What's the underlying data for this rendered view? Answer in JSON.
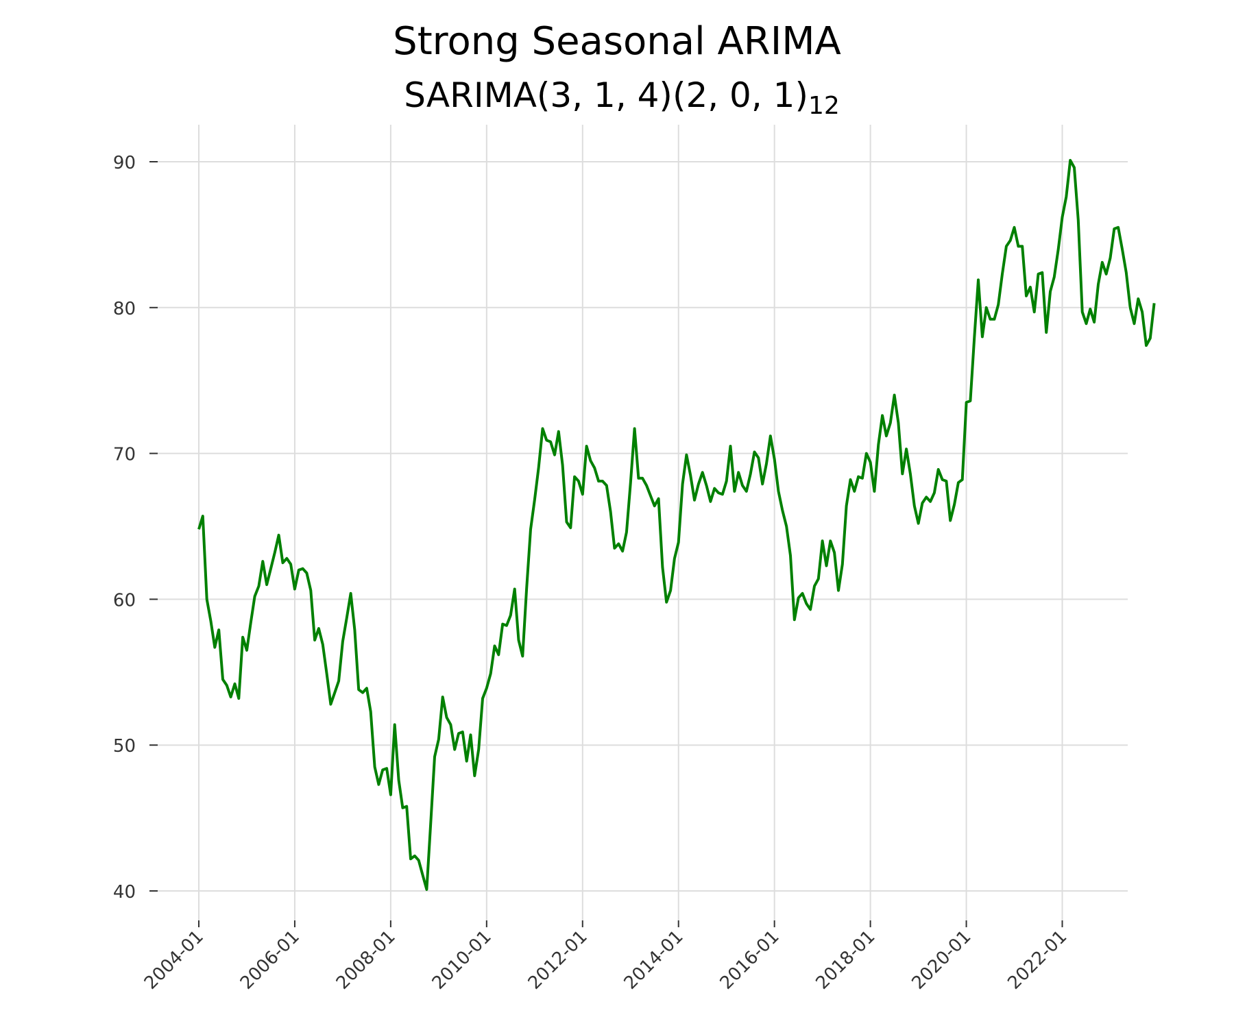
{
  "chart_data": {
    "type": "line",
    "title": "Strong Seasonal ARIMA",
    "subtitle": {
      "prefix": "SARIMA(3, 1, 4)(2, 0, 1)",
      "subscript": "12"
    },
    "xlabel": "",
    "ylabel": "",
    "x_range": [
      "2004-01",
      "2023-12"
    ],
    "ylim": [
      40,
      90
    ],
    "y_ticks": [
      40,
      50,
      60,
      70,
      80,
      90
    ],
    "x_ticks": [
      "2004-01",
      "2006-01",
      "2008-01",
      "2010-01",
      "2012-01",
      "2014-01",
      "2016-01",
      "2018-01",
      "2020-01",
      "2022-01"
    ],
    "grid": true,
    "legend": "none",
    "series": [
      {
        "color": "#008000",
        "x": [
          "2004-01",
          "2004-02",
          "2004-03",
          "2004-04",
          "2004-05",
          "2004-06",
          "2004-07",
          "2004-08",
          "2004-09",
          "2004-10",
          "2004-11",
          "2004-12",
          "2005-01",
          "2005-02",
          "2005-03",
          "2005-04",
          "2005-05",
          "2005-06",
          "2005-07",
          "2005-08",
          "2005-09",
          "2005-10",
          "2005-11",
          "2005-12",
          "2006-01",
          "2006-02",
          "2006-03",
          "2006-04",
          "2006-05",
          "2006-06",
          "2006-07",
          "2006-08",
          "2006-09",
          "2006-10",
          "2006-11",
          "2006-12",
          "2007-01",
          "2007-02",
          "2007-03",
          "2007-04",
          "2007-05",
          "2007-06",
          "2007-07",
          "2007-08",
          "2007-09",
          "2007-10",
          "2007-11",
          "2007-12",
          "2008-01",
          "2008-02",
          "2008-03",
          "2008-04",
          "2008-05",
          "2008-06",
          "2008-07",
          "2008-08",
          "2008-09",
          "2008-10",
          "2008-11",
          "2008-12",
          "2009-01",
          "2009-02",
          "2009-03",
          "2009-04",
          "2009-05",
          "2009-06",
          "2009-07",
          "2009-08",
          "2009-09",
          "2009-10",
          "2009-11",
          "2009-12",
          "2010-01",
          "2010-02",
          "2010-03",
          "2010-04",
          "2010-05",
          "2010-06",
          "2010-07",
          "2010-08",
          "2010-09",
          "2010-10",
          "2010-11",
          "2010-12",
          "2011-01",
          "2011-02",
          "2011-03",
          "2011-04",
          "2011-05",
          "2011-06",
          "2011-07",
          "2011-08",
          "2011-09",
          "2011-10",
          "2011-11",
          "2011-12",
          "2012-01",
          "2012-02",
          "2012-03",
          "2012-04",
          "2012-05",
          "2012-06",
          "2012-07",
          "2012-08",
          "2012-09",
          "2012-10",
          "2012-11",
          "2012-12",
          "2013-01",
          "2013-02",
          "2013-03",
          "2013-04",
          "2013-05",
          "2013-06",
          "2013-07",
          "2013-08",
          "2013-09",
          "2013-10",
          "2013-11",
          "2013-12",
          "2014-01",
          "2014-02",
          "2014-03",
          "2014-04",
          "2014-05",
          "2014-06",
          "2014-07",
          "2014-08",
          "2014-09",
          "2014-10",
          "2014-11",
          "2014-12",
          "2015-01",
          "2015-02",
          "2015-03",
          "2015-04",
          "2015-05",
          "2015-06",
          "2015-07",
          "2015-08",
          "2015-09",
          "2015-10",
          "2015-11",
          "2015-12",
          "2016-01",
          "2016-02",
          "2016-03",
          "2016-04",
          "2016-05",
          "2016-06",
          "2016-07",
          "2016-08",
          "2016-09",
          "2016-10",
          "2016-11",
          "2016-12",
          "2017-01",
          "2017-02",
          "2017-03",
          "2017-04",
          "2017-05",
          "2017-06",
          "2017-07",
          "2017-08",
          "2017-09",
          "2017-10",
          "2017-11",
          "2017-12",
          "2018-01",
          "2018-02",
          "2018-03",
          "2018-04",
          "2018-05",
          "2018-06",
          "2018-07",
          "2018-08",
          "2018-09",
          "2018-10",
          "2018-11",
          "2018-12",
          "2019-01",
          "2019-02",
          "2019-03",
          "2019-04",
          "2019-05",
          "2019-06",
          "2019-07",
          "2019-08",
          "2019-09",
          "2019-10",
          "2019-11",
          "2019-12",
          "2020-01",
          "2020-02",
          "2020-03",
          "2020-04",
          "2020-05",
          "2020-06",
          "2020-07",
          "2020-08",
          "2020-09",
          "2020-10",
          "2020-11",
          "2020-12",
          "2021-01",
          "2021-02",
          "2021-03",
          "2021-04",
          "2021-05",
          "2021-06",
          "2021-07",
          "2021-08",
          "2021-09",
          "2021-10",
          "2021-11",
          "2021-12",
          "2022-01",
          "2022-02",
          "2022-03",
          "2022-04",
          "2022-05",
          "2022-06",
          "2022-07",
          "2022-08",
          "2022-09",
          "2022-10",
          "2022-11",
          "2022-12",
          "2023-01",
          "2023-02",
          "2023-03",
          "2023-04",
          "2023-05",
          "2023-06",
          "2023-07",
          "2023-08",
          "2023-09",
          "2023-10",
          "2023-11",
          "2023-12"
        ],
        "values": [
          64.8,
          65.7,
          60.0,
          58.5,
          56.7,
          57.9,
          54.5,
          54.1,
          53.3,
          54.2,
          53.2,
          57.4,
          56.5,
          58.4,
          60.2,
          60.9,
          62.6,
          61.0,
          62.1,
          63.2,
          64.4,
          62.5,
          62.8,
          62.4,
          60.7,
          62.0,
          62.1,
          61.8,
          60.6,
          57.2,
          58.0,
          56.9,
          54.9,
          52.8,
          53.6,
          54.4,
          57.1,
          58.7,
          60.4,
          57.9,
          53.8,
          53.6,
          53.9,
          52.3,
          48.5,
          47.3,
          48.3,
          48.4,
          46.6,
          51.4,
          47.6,
          45.7,
          45.8,
          42.2,
          42.4,
          42.1,
          41.1,
          40.1,
          44.6,
          49.2,
          50.4,
          53.3,
          51.9,
          51.4,
          49.7,
          50.8,
          50.9,
          48.9,
          50.7,
          47.9,
          49.7,
          53.2,
          53.9,
          54.9,
          56.8,
          56.2,
          58.3,
          58.2,
          58.9,
          60.7,
          57.2,
          56.1,
          60.7,
          64.8,
          66.8,
          69.0,
          71.7,
          70.9,
          70.8,
          69.9,
          71.5,
          69.2,
          65.3,
          64.9,
          68.4,
          68.1,
          67.2,
          70.5,
          69.5,
          69.0,
          68.1,
          68.1,
          67.8,
          66.0,
          63.5,
          63.8,
          63.3,
          64.6,
          68.0,
          71.7,
          68.3,
          68.3,
          67.8,
          67.1,
          66.4,
          66.9,
          62.2,
          59.8,
          60.6,
          62.8,
          63.9,
          67.9,
          69.9,
          68.5,
          66.8,
          67.9,
          68.7,
          67.8,
          66.7,
          67.6,
          67.3,
          67.2,
          68.1,
          70.5,
          67.4,
          68.7,
          67.8,
          67.4,
          68.6,
          70.1,
          69.7,
          67.9,
          69.3,
          71.2,
          69.6,
          67.4,
          66.1,
          65.0,
          63.0,
          58.6,
          60.1,
          60.4,
          59.7,
          59.3,
          60.9,
          61.4,
          64.0,
          62.3,
          64.0,
          63.2,
          60.6,
          62.4,
          66.4,
          68.2,
          67.4,
          68.4,
          68.3,
          70.0,
          69.4,
          67.4,
          70.6,
          72.6,
          71.2,
          72.1,
          74.0,
          72.1,
          68.6,
          70.3,
          68.6,
          66.4,
          65.2,
          66.6,
          67.0,
          66.7,
          67.3,
          68.9,
          68.2,
          68.1,
          65.4,
          66.5,
          68.0,
          68.2,
          73.5,
          73.6,
          77.9,
          81.9,
          78.0,
          80.0,
          79.2,
          79.2,
          80.2,
          82.3,
          84.2,
          84.6,
          85.5,
          84.2,
          84.2,
          80.8,
          81.4,
          79.7,
          82.3,
          82.4,
          78.3,
          81.1,
          82.1,
          84.0,
          86.2,
          87.6,
          90.1,
          89.6,
          86.0,
          79.7,
          78.9,
          79.9,
          79.0,
          81.6,
          83.1,
          82.3,
          83.4,
          85.4,
          85.5,
          84.0,
          82.4,
          80.0,
          78.9,
          80.6,
          79.7,
          77.4,
          77.9,
          80.3
        ]
      }
    ]
  }
}
